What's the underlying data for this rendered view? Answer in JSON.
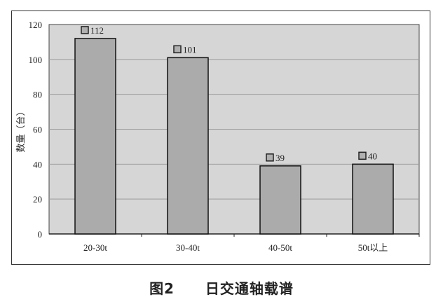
{
  "chart_data": {
    "type": "bar",
    "categories": [
      "20-30t",
      "30-40t",
      "40-50t",
      "50t以上"
    ],
    "values": [
      112,
      101,
      39,
      40
    ],
    "data_labels": [
      "112",
      "101",
      "39",
      "40"
    ],
    "title": "",
    "xlabel": "",
    "ylabel": "数量（台）",
    "ylim": [
      0,
      120
    ],
    "yticks": [
      0,
      20,
      40,
      60,
      80,
      100,
      120
    ],
    "grid": true,
    "legend": "none",
    "colors": {
      "bar": "#ababab",
      "plot_bg": "#d6d6d6",
      "grid": "#9a9a9a",
      "border": "#111111"
    }
  },
  "caption": {
    "figure_no": "图2",
    "text": "日交通轴载谱"
  }
}
